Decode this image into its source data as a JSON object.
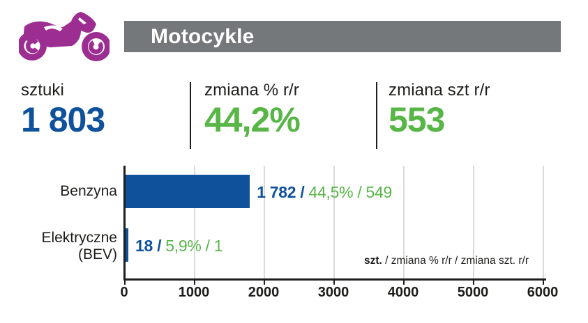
{
  "header": {
    "title": "Motocykle",
    "bar_color": "#75787B",
    "icon": "motorcycle-icon",
    "icon_color": "#9C2E92"
  },
  "colors": {
    "blue": "#0F529B",
    "green": "#58B647",
    "dark": "#1d1d1b",
    "grid": "#dadada"
  },
  "stats": [
    {
      "label": "sztuki",
      "value": "1 803",
      "color": "#0F529B"
    },
    {
      "label": "zmiana % r/r",
      "value": "44,2%",
      "color": "#58B647"
    },
    {
      "label": "zmiana szt r/r",
      "value": "553",
      "color": "#58B647"
    }
  ],
  "chart_data": {
    "type": "bar",
    "orientation": "horizontal",
    "categories": [
      "Benzyna",
      "Elektryczne (BEV)"
    ],
    "series": [
      {
        "name": "szt.",
        "values": [
          1782,
          18
        ]
      },
      {
        "name": "zmiana % r/r",
        "values": [
          44.5,
          5.9
        ]
      },
      {
        "name": "zmiana szt. r/r",
        "values": [
          549,
          1
        ]
      }
    ],
    "xlim": [
      0,
      6000
    ],
    "x_ticks": [
      0,
      1000,
      2000,
      3000,
      4000,
      5000,
      6000
    ],
    "grid": "vertical",
    "bar_color": "#0F529B",
    "rows": [
      {
        "cat_line1": "Benzyna",
        "cat_line2": "",
        "units_label": "1 782 / ",
        "change_label": "44,5% / 549"
      },
      {
        "cat_line1": "Elektryczne",
        "cat_line2": "(BEV)",
        "units_label": "18 / ",
        "change_label": "5,9% / 1"
      }
    ],
    "legend_bold": "szt.",
    "legend_rest": " / zmiana % r/r / zmiana szt. r/r"
  }
}
